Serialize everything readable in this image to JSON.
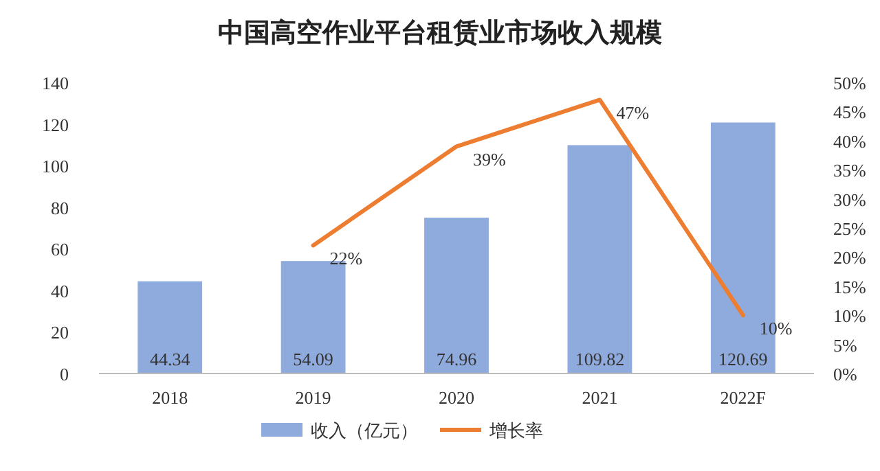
{
  "chart_data": {
    "type": "bar",
    "title": "中国高空作业平台租赁业市场收入规模",
    "categories": [
      "2018",
      "2019",
      "2020",
      "2021",
      "2022F"
    ],
    "series": [
      {
        "name": "收入（亿元）",
        "color": "#8faadc",
        "values": [
          44.34,
          54.09,
          74.96,
          109.82,
          120.69
        ],
        "data_labels": true
      },
      {
        "name": "增长率",
        "type": "line",
        "axis": "y2",
        "color": "#ed7d31",
        "values": [
          null,
          22,
          39,
          47,
          10
        ],
        "value_labels": [
          null,
          "22%",
          "39%",
          "47%",
          "10%"
        ]
      }
    ],
    "ylim": [
      0,
      140
    ],
    "yticks": [
      0,
      20,
      40,
      60,
      80,
      100,
      120,
      140
    ],
    "y2lim": [
      0,
      50
    ],
    "y2ticks": [
      {
        "value": 0,
        "label": "0%"
      },
      {
        "value": 5,
        "label": "5%"
      },
      {
        "value": 10,
        "label": "10%"
      },
      {
        "value": 15,
        "label": "15%"
      },
      {
        "value": 20,
        "label": "20%"
      },
      {
        "value": 25,
        "label": "25%"
      },
      {
        "value": 30,
        "label": "30%"
      },
      {
        "value": 35,
        "label": "35%"
      },
      {
        "value": 40,
        "label": "40%"
      },
      {
        "value": 45,
        "label": "45%"
      },
      {
        "value": 50,
        "label": "50%"
      }
    ],
    "grid": false,
    "legend": "bottom",
    "marker": "none",
    "line_style": "solid"
  }
}
